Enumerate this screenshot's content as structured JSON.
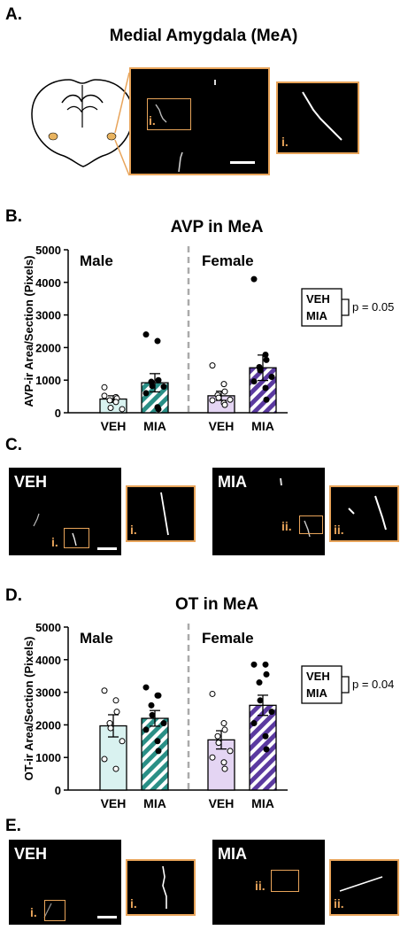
{
  "panelA": {
    "letter": "A.",
    "title": "Medial Amygdala (MeA)",
    "label_main": "i.",
    "label_inset": "i."
  },
  "panelB": {
    "letter": "B."
  },
  "panelC": {
    "letter": "C.",
    "veh_title": "VEH",
    "mia_title": "MIA",
    "veh_label": "i.",
    "veh_inset_label": "i.",
    "mia_label": "ii.",
    "mia_inset_label": "ii."
  },
  "panelD": {
    "letter": "D."
  },
  "panelE": {
    "letter": "E.",
    "veh_title": "VEH",
    "mia_title": "MIA",
    "veh_label": "i.",
    "veh_inset_label": "i.",
    "mia_label": "ii.",
    "mia_inset_label": "ii."
  },
  "chart_data": [
    {
      "type": "bar",
      "title": "AVP in MeA",
      "ylabel": "AVP-ir Area/Section (Pixels)",
      "ylim": [
        0,
        5000
      ],
      "yticks": [
        0,
        1000,
        2000,
        3000,
        4000,
        5000
      ],
      "groups": [
        "Male",
        "Female"
      ],
      "categories": [
        "VEH",
        "MIA",
        "VEH",
        "MIA"
      ],
      "values": [
        420,
        920,
        520,
        1380
      ],
      "errors": [
        100,
        280,
        140,
        390
      ],
      "fills": [
        "#d9f2f0",
        "#2a8f86",
        "#e4d5f3",
        "#5b3aa0"
      ],
      "hatched": [
        false,
        true,
        false,
        true
      ],
      "points": [
        [
          780,
          480,
          440,
          380,
          150,
          110,
          520,
          330
        ],
        [
          2400,
          2200,
          1000,
          950,
          820,
          800,
          600,
          170,
          110
        ],
        [
          1450,
          880,
          650,
          540,
          460,
          400,
          380,
          300,
          240
        ],
        [
          4100,
          1780,
          1620,
          1400,
          1300,
          1100,
          960,
          760,
          400
        ]
      ],
      "legend": [
        "VEH",
        "MIA"
      ],
      "stat": "p = 0.05"
    },
    {
      "type": "bar",
      "title": "OT in MeA",
      "ylabel": "OT-ir Area/Section (Pixels)",
      "ylim": [
        0,
        5000
      ],
      "yticks": [
        0,
        1000,
        2000,
        3000,
        4000,
        5000
      ],
      "groups": [
        "Male",
        "Female"
      ],
      "categories": [
        "VEH",
        "MIA",
        "VEH",
        "MIA"
      ],
      "values": [
        1970,
        2200,
        1540,
        2600
      ],
      "errors": [
        340,
        240,
        280,
        310
      ],
      "fills": [
        "#d9f2f0",
        "#2a8f86",
        "#e4d5f3",
        "#5b3aa0"
      ],
      "hatched": [
        false,
        true,
        false,
        true
      ],
      "points": [
        [
          3050,
          2750,
          2400,
          2050,
          1900,
          1500,
          950,
          650
        ],
        [
          3150,
          2900,
          2900,
          2600,
          2300,
          2050,
          1850,
          1500,
          1200
        ],
        [
          2950,
          2050,
          1850,
          1650,
          1450,
          1200,
          1000,
          850,
          650
        ],
        [
          3850,
          3850,
          3550,
          3300,
          2750,
          2400,
          2050,
          1650,
          1250
        ]
      ],
      "legend": [
        "VEH",
        "MIA"
      ],
      "stat": "p = 0.04"
    }
  ]
}
